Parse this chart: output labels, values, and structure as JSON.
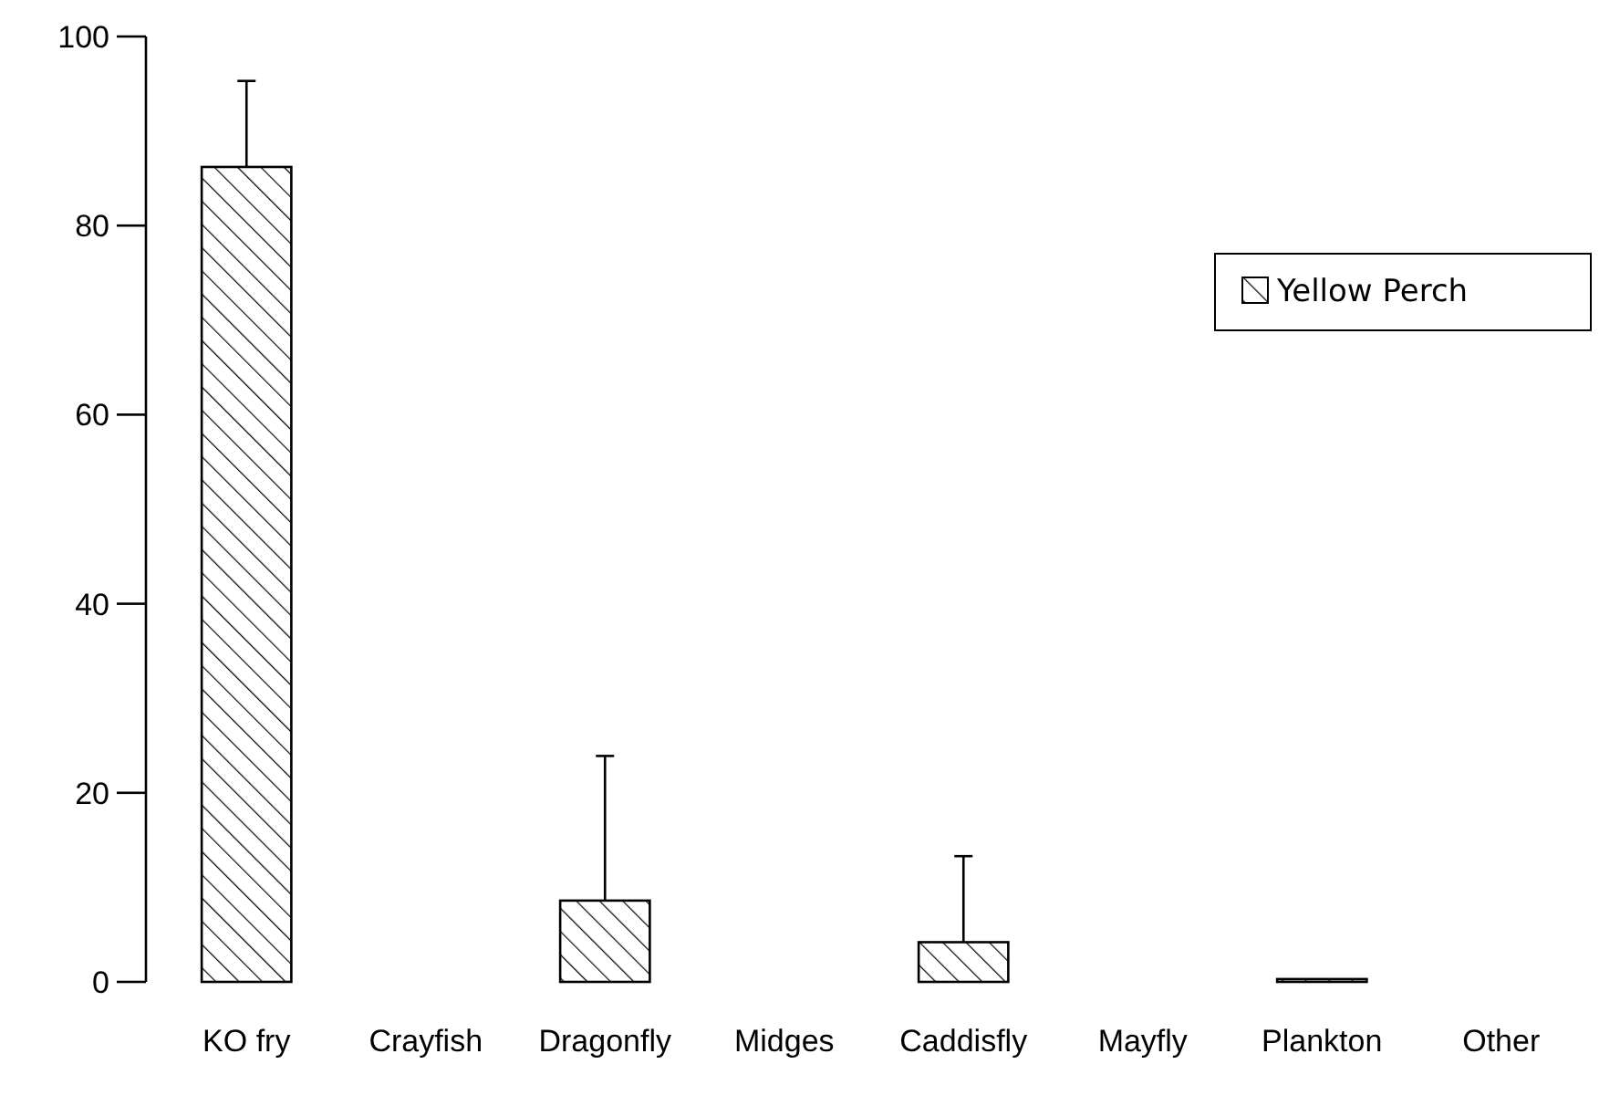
{
  "chart_data": {
    "type": "bar",
    "categories": [
      "KO fry",
      "Crayfish",
      "Dragonfly",
      "Midges",
      "Caddisfly",
      "Mayfly",
      "Plankton",
      "Other"
    ],
    "series": [
      {
        "name": "Yellow Perch",
        "color": "#000000",
        "values": [
          86.2,
          0,
          8.6,
          0,
          4.2,
          0,
          0.3,
          0
        ],
        "errors": [
          9.1,
          null,
          15.3,
          null,
          9.1,
          null,
          null,
          null
        ]
      }
    ],
    "ylim": [
      0,
      100
    ],
    "yticks": [
      0,
      20,
      40,
      60,
      80,
      100
    ],
    "legend": "top right"
  }
}
